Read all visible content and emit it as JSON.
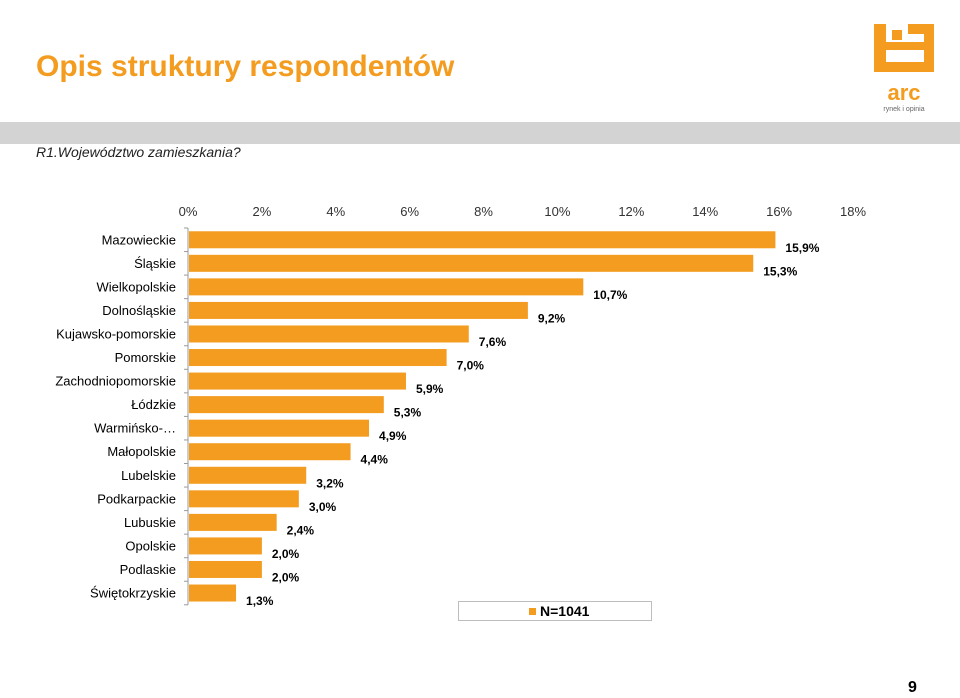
{
  "page": {
    "title": "Opis struktury respondentów",
    "question": "R1.Województwo zamieszkania?",
    "note": "N=1041",
    "page_number": "9",
    "logo": {
      "text": "arc",
      "subtext": "rynek i opinia",
      "color": "#f39c1f"
    }
  },
  "chart_data": {
    "type": "bar",
    "orientation": "horizontal",
    "title": "",
    "xlabel": "",
    "ylabel": "",
    "xlim": [
      0,
      18
    ],
    "x_ticks": [
      "0%",
      "2%",
      "4%",
      "6%",
      "8%",
      "10%",
      "12%",
      "14%",
      "16%",
      "18%"
    ],
    "x_axis_position": "top",
    "grid": false,
    "color": "#f39c1f",
    "categories": [
      "Mazowieckie",
      "Śląskie",
      "Wielkopolskie",
      "Dolnośląskie",
      "Kujawsko-pomorskie",
      "Pomorskie",
      "Zachodniopomorskie",
      "Łódzkie",
      "Warmińsko-…",
      "Małopolskie",
      "Lubelskie",
      "Podkarpackie",
      "Lubuskie",
      "Opolskie",
      "Podlaskie",
      "Świętokrzyskie"
    ],
    "values": [
      15.9,
      15.3,
      10.7,
      9.2,
      7.6,
      7.0,
      5.9,
      5.3,
      4.9,
      4.4,
      3.2,
      3.0,
      2.4,
      2.0,
      2.0,
      1.3
    ],
    "value_labels": [
      "15,9%",
      "15,3%",
      "10,7%",
      "9,2%",
      "7,6%",
      "7,0%",
      "5,9%",
      "5,3%",
      "4,9%",
      "4,4%",
      "3,2%",
      "3,0%",
      "2,4%",
      "2,0%",
      "2,0%",
      "1,3%"
    ]
  }
}
